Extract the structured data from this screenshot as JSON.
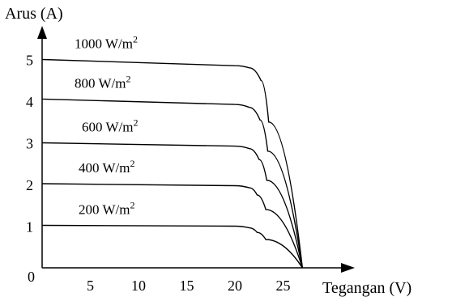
{
  "chart_data": {
    "type": "line",
    "ylabel": "Arus (A)",
    "xlabel": "Tegangan (V)",
    "x_ticks": [
      {
        "value": 5,
        "label": "5"
      },
      {
        "value": 10,
        "label": "10"
      },
      {
        "value": 15,
        "label": "15"
      },
      {
        "value": 20,
        "label": "20"
      },
      {
        "value": 25,
        "label": "25"
      }
    ],
    "y_ticks": [
      {
        "value": 0,
        "label": "0"
      },
      {
        "value": 1,
        "label": "1"
      },
      {
        "value": 2,
        "label": "2"
      },
      {
        "value": 3,
        "label": "3"
      },
      {
        "value": 4,
        "label": "4"
      },
      {
        "value": 5,
        "label": "5"
      }
    ],
    "series": [
      {
        "name": "1000 W/m2",
        "label_base": "1000 W/m",
        "label_sup": "2",
        "points": [
          [
            0,
            5.0
          ],
          [
            20,
            4.85
          ],
          [
            21.5,
            4.8
          ],
          [
            22.7,
            4.5
          ],
          [
            23.5,
            3.5
          ],
          [
            27,
            0
          ]
        ]
      },
      {
        "name": "800 W/m2",
        "label_base": "800 W/m",
        "label_sup": "2",
        "points": [
          [
            0,
            4.05
          ],
          [
            20,
            3.92
          ],
          [
            21.5,
            3.85
          ],
          [
            22.6,
            3.55
          ],
          [
            23.4,
            2.8
          ],
          [
            27,
            0
          ]
        ]
      },
      {
        "name": "600 W/m2",
        "label_base": "600 W/m",
        "label_sup": "2",
        "points": [
          [
            0,
            3.0
          ],
          [
            20,
            2.92
          ],
          [
            21.5,
            2.86
          ],
          [
            22.5,
            2.6
          ],
          [
            23.3,
            2.1
          ],
          [
            27,
            0
          ]
        ]
      },
      {
        "name": "400 W/m2",
        "label_base": "400 W/m",
        "label_sup": "2",
        "points": [
          [
            0,
            2.02
          ],
          [
            20,
            1.97
          ],
          [
            21.5,
            1.92
          ],
          [
            22.3,
            1.75
          ],
          [
            23.2,
            1.4
          ],
          [
            27,
            0
          ]
        ]
      },
      {
        "name": "200 W/m2",
        "label_base": "200 W/m",
        "label_sup": "2",
        "points": [
          [
            0,
            1.02
          ],
          [
            20,
            1.0
          ],
          [
            21.5,
            0.96
          ],
          [
            22.3,
            0.85
          ],
          [
            23.2,
            0.68
          ],
          [
            27,
            0
          ]
        ]
      }
    ],
    "xlim": [
      0,
      29
    ],
    "ylim": [
      0,
      5.4
    ],
    "grid": false,
    "legend": "none"
  }
}
